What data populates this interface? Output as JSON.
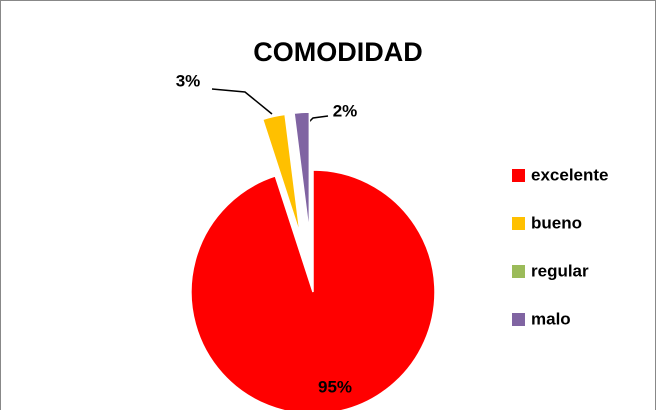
{
  "chart_data": {
    "type": "pie",
    "title": "COMODIDAD",
    "categories": [
      "excelente",
      "bueno",
      "regular",
      "malo"
    ],
    "values": [
      95,
      3,
      0,
      2
    ],
    "value_labels": [
      "95%",
      "3%",
      null,
      "2%"
    ],
    "colors": [
      "#ff0000",
      "#ffc000",
      "#9bbb59",
      "#8064a2"
    ],
    "legend": "right"
  }
}
